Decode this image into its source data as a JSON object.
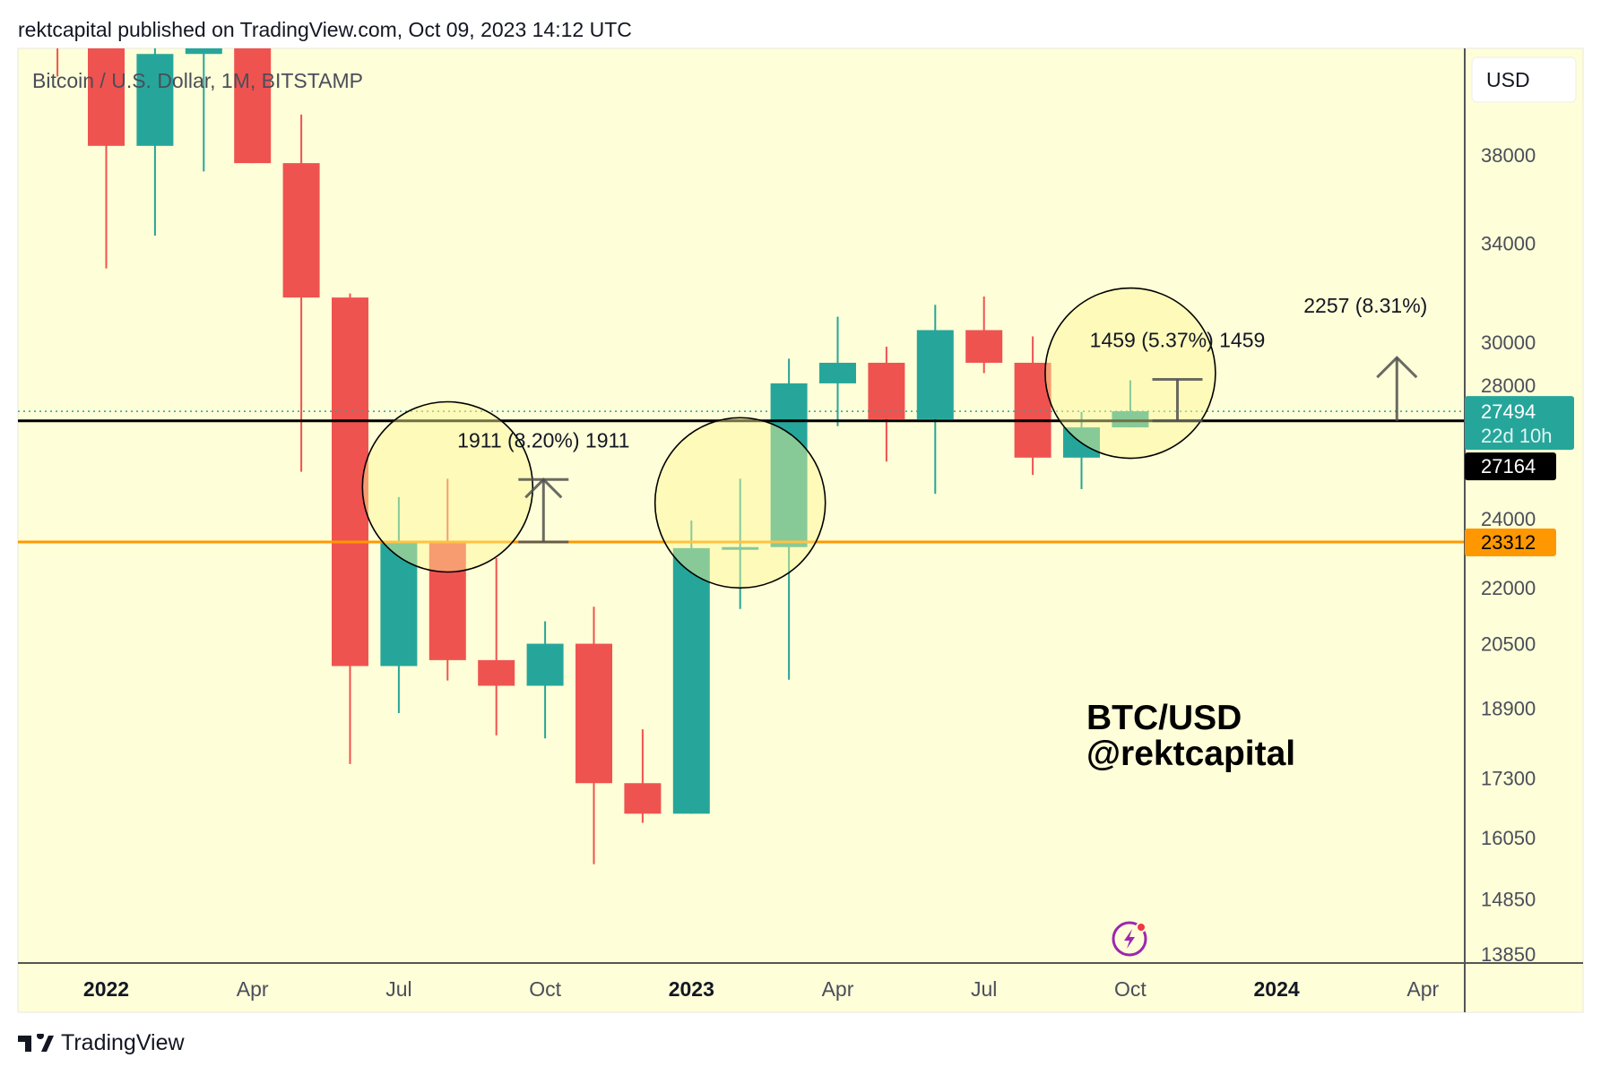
{
  "header": {
    "published": "rektcapital published on TradingView.com, Oct 09, 2023 14:12 UTC"
  },
  "footer": {
    "brand": "TradingView"
  },
  "chart_data": {
    "type": "candlestick",
    "title": "Bitcoin / U.S. Dollar, 1M, BITSTAMP",
    "currency_button": "USD",
    "y_scale": "log",
    "y_ticks": [
      38000,
      34000,
      30000,
      28000,
      24000,
      22000,
      20500,
      18900,
      17300,
      16050,
      14850,
      13850
    ],
    "x_ticks": [
      {
        "label": "2022",
        "date": "2022-01",
        "bold": true
      },
      {
        "label": "Apr",
        "date": "2022-04",
        "bold": false
      },
      {
        "label": "Jul",
        "date": "2022-07",
        "bold": false
      },
      {
        "label": "Oct",
        "date": "2022-10",
        "bold": false
      },
      {
        "label": "2023",
        "date": "2023-01",
        "bold": true
      },
      {
        "label": "Apr",
        "date": "2023-04",
        "bold": false
      },
      {
        "label": "Jul",
        "date": "2023-07",
        "bold": false
      },
      {
        "label": "Oct",
        "date": "2023-10",
        "bold": false
      },
      {
        "label": "2024",
        "date": "2024-01",
        "bold": true
      },
      {
        "label": "Apr",
        "date": "2024-04",
        "bold": false
      }
    ],
    "colors": {
      "up": "#26a69a",
      "down": "#ef5350",
      "background": "#fefed8",
      "support": "#ff9800",
      "level": "#000000"
    },
    "candles": [
      {
        "date": "2021-12",
        "o": 57000,
        "h": 59100,
        "l": 41960,
        "c": 46200
      },
      {
        "date": "2022-01",
        "o": 46200,
        "h": 47900,
        "l": 32930,
        "c": 38440
      },
      {
        "date": "2022-02",
        "o": 38440,
        "h": 45800,
        "l": 34320,
        "c": 43170
      },
      {
        "date": "2022-03",
        "o": 43170,
        "h": 48200,
        "l": 37220,
        "c": 45500
      },
      {
        "date": "2022-04",
        "o": 45500,
        "h": 47400,
        "l": 37610,
        "c": 37610
      },
      {
        "date": "2022-05",
        "o": 37610,
        "h": 39990,
        "l": 25470,
        "c": 31740
      },
      {
        "date": "2022-06",
        "o": 31740,
        "h": 31900,
        "l": 17610,
        "c": 19930
      },
      {
        "date": "2022-07",
        "o": 19930,
        "h": 24670,
        "l": 18780,
        "c": 23340
      },
      {
        "date": "2022-08",
        "o": 23340,
        "h": 25250,
        "l": 19570,
        "c": 20080
      },
      {
        "date": "2022-09",
        "o": 20080,
        "h": 22840,
        "l": 18260,
        "c": 19440
      },
      {
        "date": "2022-10",
        "o": 19440,
        "h": 21090,
        "l": 18190,
        "c": 20500
      },
      {
        "date": "2022-11",
        "o": 20500,
        "h": 21480,
        "l": 15520,
        "c": 17190
      },
      {
        "date": "2022-12",
        "o": 17190,
        "h": 18400,
        "l": 16350,
        "c": 16540
      },
      {
        "date": "2023-01",
        "o": 16540,
        "h": 23950,
        "l": 16540,
        "c": 23130
      },
      {
        "date": "2023-02",
        "o": 23130,
        "h": 25250,
        "l": 21420,
        "c": 23160
      },
      {
        "date": "2023-03",
        "o": 23160,
        "h": 29380,
        "l": 19590,
        "c": 28480
      },
      {
        "date": "2023-04",
        "o": 28480,
        "h": 30980,
        "l": 26980,
        "c": 29230
      },
      {
        "date": "2023-05",
        "o": 29230,
        "h": 29830,
        "l": 25800,
        "c": 27220
      },
      {
        "date": "2023-06",
        "o": 27220,
        "h": 31450,
        "l": 24770,
        "c": 30460
      },
      {
        "date": "2023-07",
        "o": 30460,
        "h": 31780,
        "l": 28850,
        "c": 29230
      },
      {
        "date": "2023-08",
        "o": 29230,
        "h": 30220,
        "l": 25370,
        "c": 25930
      },
      {
        "date": "2023-09",
        "o": 25930,
        "h": 27470,
        "l": 24920,
        "c": 26940
      },
      {
        "date": "2023-10",
        "o": 26940,
        "h": 28590,
        "l": 26940,
        "c": 27494
      }
    ],
    "horizontal_lines": [
      {
        "price": 27164,
        "label": "27164",
        "color": "#000000"
      },
      {
        "price": 23312,
        "label": "23312",
        "color": "#ff9800"
      }
    ],
    "last_price": {
      "price": 27494,
      "label": "27494",
      "countdown": "22d 10h",
      "color": "#26a69a"
    },
    "circles": [
      {
        "date": "2022-08",
        "price": 24990
      },
      {
        "date": "2023-02",
        "price": 24490
      },
      {
        "date": "2023-10",
        "price": 28850
      }
    ],
    "measurements": [
      {
        "date": "2022-10-15",
        "from": 23312,
        "to": 25223,
        "label": "1911 (8.20%) 1911",
        "style": "bracket"
      },
      {
        "date": "2023-11-15",
        "from": 27164,
        "to": 28623,
        "label": "1459 (5.37%) 1459",
        "style": "bracket"
      },
      {
        "date": "2024-03-30",
        "from": 27164,
        "to": 29421,
        "label": "2257 (8.31%)",
        "style": "arrow"
      }
    ],
    "watermark": {
      "line1": "BTC/USD",
      "line2": "@rektcapital"
    }
  }
}
